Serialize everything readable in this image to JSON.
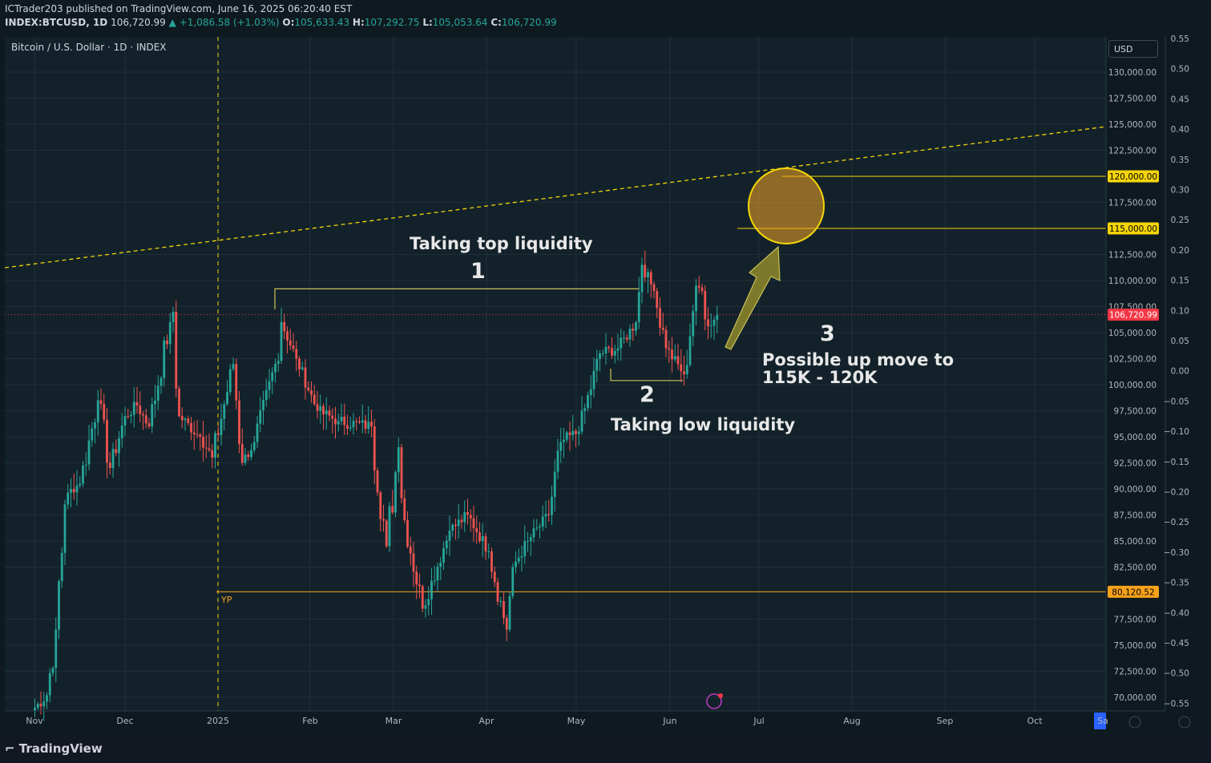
{
  "header": {
    "publisher_line": "ICTrader203 published on TradingView.com, June 16, 2025 06:20:40 EST",
    "symbol": "INDEX:BTCUSD, 1D",
    "last": "106,720.99",
    "change": "+1,086.58 (+1.03%)",
    "o_label": "O:",
    "o": "105,633.43",
    "h_label": "H:",
    "h": "107,292.75",
    "l_label": "L:",
    "l": "105,053.64",
    "c_label": "C:",
    "c": "106,720.99"
  },
  "chart_title": "Bitcoin / U.S. Dollar · 1D · INDEX",
  "currency_button": "USD",
  "brand": "TradingView",
  "colors": {
    "up": "#26a69a",
    "down": "#ef5350",
    "accent_yellow": "#f5d50a",
    "price_label": "#f23645",
    "yp_line": "#f7a21b",
    "background": "#0e1a20",
    "arrow": "#8f8a2a"
  },
  "annotations": {
    "top_title": "Taking top liquidity",
    "top_num": "1",
    "low_num": "2",
    "low_title": "Taking low liquidity",
    "target_num": "3",
    "target_line1": "Possible up move to",
    "target_line2": "115K - 120K",
    "yp_label": "YP"
  },
  "chart_data": {
    "type": "candlestick",
    "x_ticks": [
      "Nov",
      "Dec",
      "2025",
      "Feb",
      "Mar",
      "Apr",
      "May",
      "Jun",
      "Jul",
      "Aug",
      "Sep",
      "Oct",
      "Sa"
    ],
    "y_ticks": [
      "130,000.00",
      "127,500.00",
      "125,000.00",
      "122,500.00",
      "117,500.00",
      "112,500.00",
      "110,000.00",
      "107,500.00",
      "105,000.00",
      "102,500.00",
      "100,000.00",
      "97,500.00",
      "95,000.00",
      "92,500.00",
      "90,000.00",
      "87,500.00",
      "85,000.00",
      "82,500.00",
      "77,500.00",
      "75,000.00",
      "72,500.00",
      "70,000.00"
    ],
    "y_range": [
      69000,
      132500
    ],
    "right_axis_ticks": [
      "0.55",
      "0.50",
      "0.45",
      "0.40",
      "0.35",
      "0.30",
      "0.25",
      "0.20",
      "0.15",
      "0.10",
      "0.05",
      "0.00",
      "−0.05",
      "−0.10",
      "−0.15",
      "−0.20",
      "−0.25",
      "−0.30",
      "−0.35",
      "−0.40",
      "−0.45",
      "−0.50",
      "−0.55"
    ],
    "price_tags": [
      {
        "value": 120000,
        "text": "120,000.00"
      },
      {
        "value": 115000,
        "text": "115,000.00"
      },
      {
        "value": 106720.99,
        "text": "106,720.99"
      },
      {
        "value": 80120.52,
        "text": "80,120.52"
      }
    ],
    "anchors": [
      {
        "t": "2024-11-01",
        "c": 69000
      },
      {
        "t": "2024-11-05",
        "c": 70200
      },
      {
        "t": "2024-11-08",
        "c": 76500
      },
      {
        "t": "2024-11-11",
        "c": 88500
      },
      {
        "t": "2024-11-13",
        "c": 90000
      },
      {
        "t": "2024-11-16",
        "c": 90500
      },
      {
        "t": "2024-11-22",
        "c": 98500
      },
      {
        "t": "2024-11-26",
        "c": 92000
      },
      {
        "t": "2024-12-01",
        "c": 97000
      },
      {
        "t": "2024-12-05",
        "c": 98000
      },
      {
        "t": "2024-12-09",
        "c": 96000
      },
      {
        "t": "2024-12-16",
        "c": 106000
      },
      {
        "t": "2024-12-17",
        "c": 107000
      },
      {
        "t": "2024-12-19",
        "c": 97000
      },
      {
        "t": "2024-12-26",
        "c": 95000
      },
      {
        "t": "2024-12-30",
        "c": 93000
      },
      {
        "t": "2025-01-06",
        "c": 102000
      },
      {
        "t": "2025-01-09",
        "c": 92500
      },
      {
        "t": "2025-01-13",
        "c": 94500
      },
      {
        "t": "2025-01-20",
        "c": 102000
      },
      {
        "t": "2025-01-22",
        "c": 106000
      },
      {
        "t": "2025-01-27",
        "c": 102500
      },
      {
        "t": "2025-02-03",
        "c": 97500
      },
      {
        "t": "2025-02-10",
        "c": 96500
      },
      {
        "t": "2025-02-21",
        "c": 96000
      },
      {
        "t": "2025-02-26",
        "c": 84500
      },
      {
        "t": "2025-03-02",
        "c": 94000
      },
      {
        "t": "2025-03-04",
        "c": 87000
      },
      {
        "t": "2025-03-10",
        "c": 78500
      },
      {
        "t": "2025-03-19",
        "c": 86000
      },
      {
        "t": "2025-03-25",
        "c": 87500
      },
      {
        "t": "2025-04-01",
        "c": 84000
      },
      {
        "t": "2025-04-07",
        "c": 76500
      },
      {
        "t": "2025-04-09",
        "c": 82500
      },
      {
        "t": "2025-04-14",
        "c": 85000
      },
      {
        "t": "2025-04-21",
        "c": 87500
      },
      {
        "t": "2025-04-25",
        "c": 94500
      },
      {
        "t": "2025-05-01",
        "c": 95500
      },
      {
        "t": "2025-05-08",
        "c": 103000
      },
      {
        "t": "2025-05-14",
        "c": 103500
      },
      {
        "t": "2025-05-20",
        "c": 106000
      },
      {
        "t": "2025-05-22",
        "c": 111500
      },
      {
        "t": "2025-05-26",
        "c": 109000
      },
      {
        "t": "2025-05-30",
        "c": 103500
      },
      {
        "t": "2025-06-05",
        "c": 101000
      },
      {
        "t": "2025-06-09",
        "c": 109500
      },
      {
        "t": "2025-06-11",
        "c": 109000
      },
      {
        "t": "2025-06-13",
        "c": 105600
      },
      {
        "t": "2025-06-16",
        "c": 106720.99
      }
    ],
    "levels": {
      "top_liquidity": 109200,
      "low_liquidity": 100400,
      "target_low": 115000,
      "target_high": 120000,
      "yearly_open": 80120.52
    }
  }
}
